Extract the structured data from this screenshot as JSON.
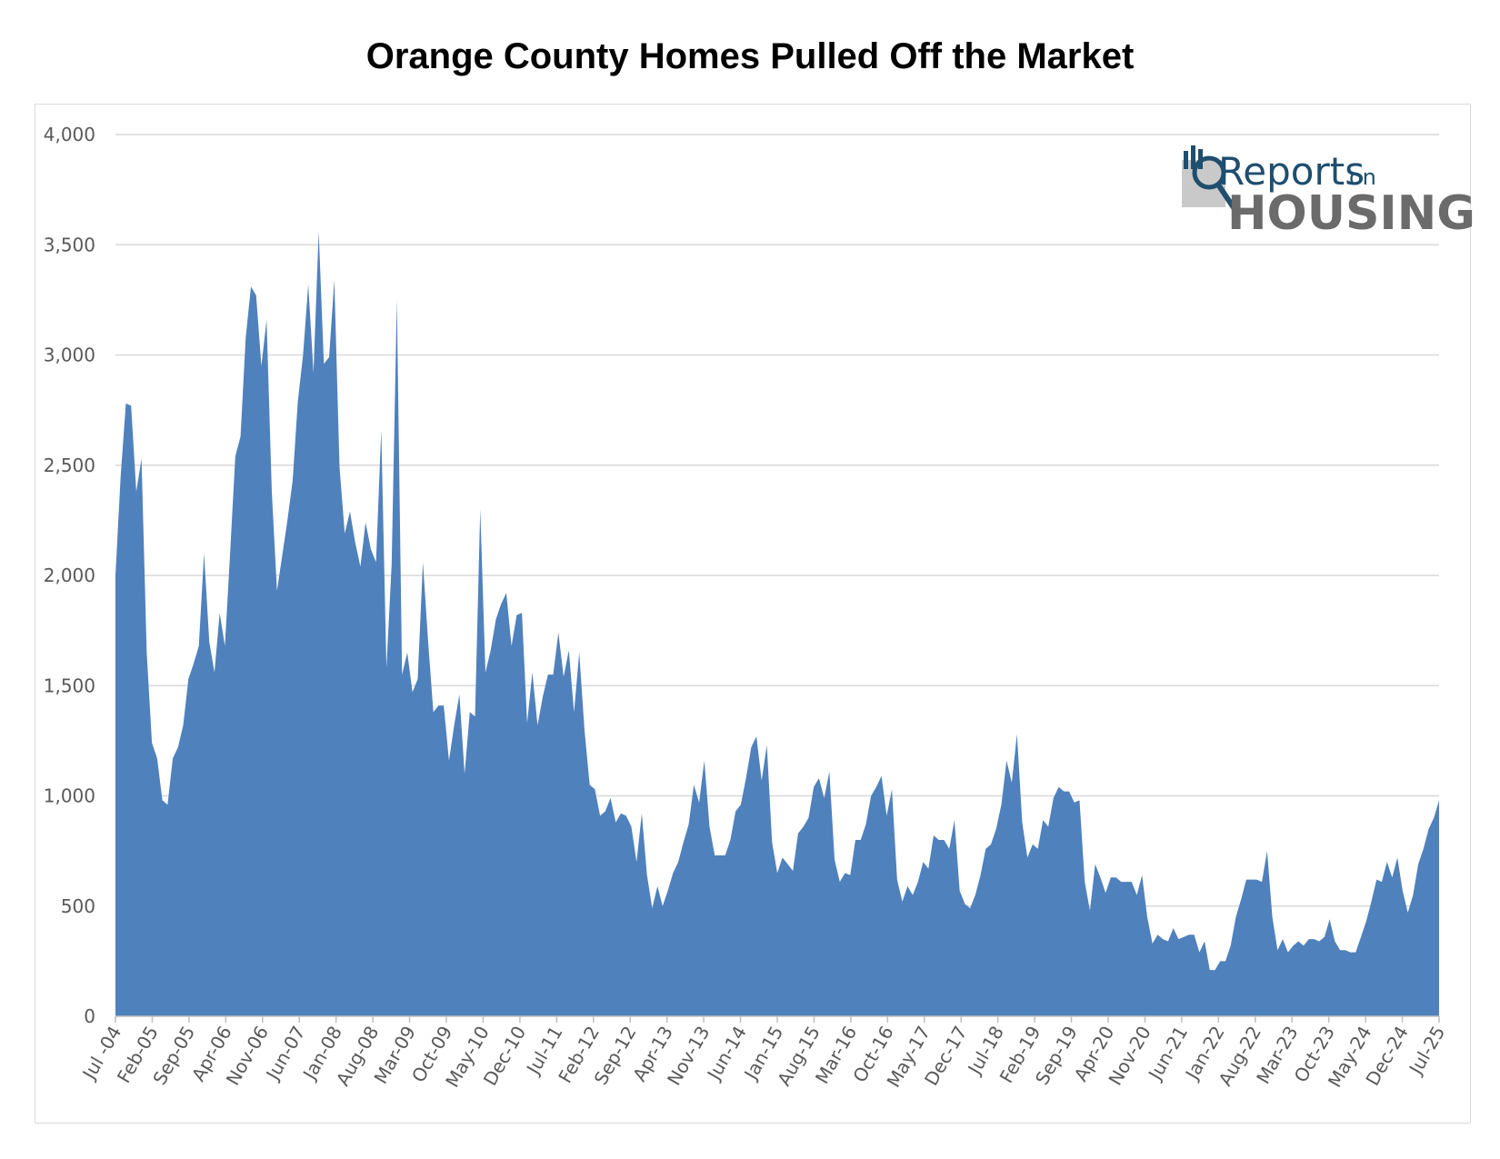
{
  "chart_data": {
    "type": "area",
    "title": "Orange County Homes Pulled Off the Market",
    "xlabel": "",
    "ylabel": "",
    "ylim": [
      0,
      4000
    ],
    "y_ticks": [
      "0",
      "500",
      "1,000",
      "1,500",
      "2,000",
      "2,500",
      "3,000",
      "3,500",
      "4,000"
    ],
    "x_ticks": [
      "Jul -04",
      "Feb-05",
      "Sep-05",
      "Apr-06",
      "Nov-06",
      "Jun-07",
      "Jan-08",
      "Aug-08",
      "Mar-09",
      "Oct-09",
      "May-10",
      "Dec-10",
      "Jul-11",
      "Feb-12",
      "Sep-12",
      "Apr-13",
      "Nov-13",
      "Jun-14",
      "Jan-15",
      "Aug-15",
      "Mar-16",
      "Oct-16",
      "May-17",
      "Dec-17",
      "Jul-18",
      "Feb-19",
      "Sep-19",
      "Apr-20",
      "Nov-20",
      "Jun-21",
      "Jan-22",
      "Aug-22",
      "Mar-23",
      "Oct-23",
      "May-24",
      "Dec-24",
      "Jul-25"
    ],
    "grid": true,
    "color": "#4f81bd",
    "x_start": "2004-07",
    "x_end": "2025-07",
    "values": [
      2000,
      2450,
      2780,
      2770,
      2380,
      2530,
      1650,
      1240,
      1170,
      980,
      960,
      1170,
      1220,
      1320,
      1530,
      1600,
      1680,
      2100,
      1700,
      1560,
      1830,
      1680,
      2100,
      2540,
      2630,
      3080,
      3310,
      3270,
      2950,
      3160,
      2380,
      1930,
      2090,
      2250,
      2430,
      2790,
      3000,
      3320,
      2920,
      3560,
      2960,
      2990,
      3340,
      2490,
      2190,
      2290,
      2150,
      2040,
      2240,
      2120,
      2060,
      2660,
      1580,
      2050,
      3250,
      1550,
      1650,
      1470,
      1530,
      2060,
      1700,
      1380,
      1410,
      1410,
      1160,
      1320,
      1460,
      1100,
      1380,
      1360,
      2300,
      1560,
      1660,
      1800,
      1870,
      1920,
      1680,
      1820,
      1830,
      1330,
      1560,
      1320,
      1450,
      1550,
      1550,
      1740,
      1540,
      1660,
      1380,
      1650,
      1300,
      1050,
      1030,
      910,
      930,
      990,
      880,
      920,
      910,
      860,
      700,
      920,
      640,
      490,
      590,
      500,
      570,
      650,
      700,
      790,
      870,
      1050,
      970,
      1160,
      860,
      730,
      730,
      730,
      800,
      930,
      960,
      1080,
      1220,
      1270,
      1070,
      1230,
      790,
      650,
      720,
      690,
      660,
      830,
      860,
      900,
      1040,
      1080,
      990,
      1110,
      710,
      610,
      650,
      640,
      800,
      800,
      870,
      1000,
      1040,
      1090,
      910,
      1030,
      620,
      520,
      590,
      550,
      610,
      700,
      670,
      820,
      800,
      800,
      760,
      890,
      570,
      510,
      490,
      550,
      640,
      760,
      780,
      850,
      960,
      1160,
      1060,
      1280,
      880,
      720,
      780,
      760,
      890,
      860,
      990,
      1040,
      1020,
      1020,
      970,
      980,
      610,
      480,
      690,
      630,
      560,
      630,
      630,
      610,
      610,
      610,
      550,
      640,
      450,
      330,
      370,
      350,
      340,
      400,
      350,
      360,
      370,
      370,
      290,
      340,
      210,
      210,
      250,
      250,
      320,
      450,
      530,
      620,
      620,
      620,
      610,
      750,
      450,
      300,
      350,
      290,
      320,
      340,
      320,
      350,
      350,
      340,
      360,
      440,
      340,
      300,
      300,
      290,
      290,
      360,
      430,
      520,
      620,
      610,
      700,
      630,
      720,
      570,
      470,
      550,
      690,
      760,
      850,
      900,
      980
    ]
  },
  "logo": {
    "word_reports": "Reports",
    "word_on": "on",
    "word_housing": "HOUSING"
  }
}
